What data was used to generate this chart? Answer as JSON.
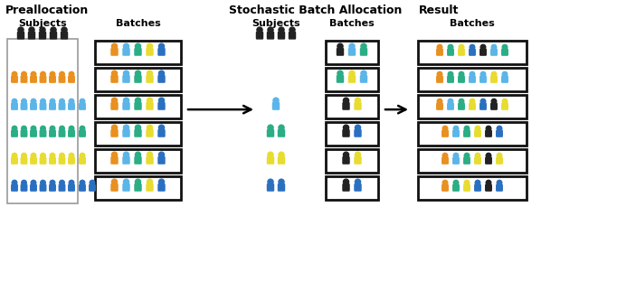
{
  "title_preallocation": "Preallocation",
  "title_stochastic": "Stochastic Batch Allocation",
  "title_result": "Result",
  "label_subjects": "Subjects",
  "label_batches": "Batches",
  "colors": {
    "black": "#222222",
    "orange": "#E89020",
    "light_blue": "#5BB5E8",
    "teal": "#2BAD85",
    "yellow": "#E8DC30",
    "blue": "#2B70C0"
  },
  "background": "#ffffff",
  "pre_batch_contents": [
    [
      "orange",
      "light_blue",
      "teal",
      "yellow",
      "blue"
    ],
    [
      "orange",
      "light_blue",
      "teal",
      "yellow",
      "blue"
    ],
    [
      "orange",
      "light_blue",
      "teal",
      "yellow",
      "blue"
    ],
    [
      "orange",
      "light_blue",
      "teal",
      "yellow",
      "blue"
    ],
    [
      "orange",
      "light_blue",
      "teal",
      "yellow",
      "blue"
    ],
    [
      "orange",
      "light_blue",
      "teal",
      "yellow",
      "blue"
    ]
  ],
  "sto_batch_contents": [
    [
      "black",
      "light_blue",
      "teal"
    ],
    [
      "teal",
      "yellow",
      "light_blue"
    ],
    [
      "black",
      "yellow"
    ],
    [
      "black",
      "blue"
    ],
    [
      "black",
      "yellow"
    ],
    [
      "black",
      "blue"
    ]
  ],
  "result_batch_contents": [
    [
      "orange",
      "teal",
      "yellow",
      "blue",
      "black",
      "light_blue",
      "teal"
    ],
    [
      "orange",
      "teal",
      "teal",
      "blue",
      "light_blue",
      "yellow",
      "light_blue"
    ],
    [
      "orange",
      "light_blue",
      "teal",
      "blue",
      "black",
      "yellow"
    ],
    [
      "orange",
      "light_blue",
      "teal",
      "yellow",
      "black",
      "blue"
    ],
    [
      "orange",
      "light_blue",
      "teal",
      "yellow",
      "black",
      "yellow"
    ],
    [
      "orange",
      "teal",
      "yellow",
      "blue",
      "black",
      "blue"
    ]
  ],
  "pre_subj_rows": [
    {
      "color": "orange",
      "count": 7
    },
    {
      "color": "light_blue",
      "count": 7,
      "extra": 1
    },
    {
      "color": "teal",
      "count": 7,
      "extra": 1
    },
    {
      "color": "yellow",
      "count": 7,
      "extra": 1
    },
    {
      "color": "blue",
      "count": 7,
      "extra": 2
    }
  ],
  "sto_subj": [
    {
      "colors": [
        "light_blue"
      ],
      "row": 2
    },
    {
      "colors": [
        "teal",
        "teal"
      ],
      "row": 3
    },
    {
      "colors": [
        "yellow",
        "yellow"
      ],
      "row": 4
    },
    {
      "colors": [
        "blue",
        "blue"
      ],
      "row": 5
    }
  ]
}
